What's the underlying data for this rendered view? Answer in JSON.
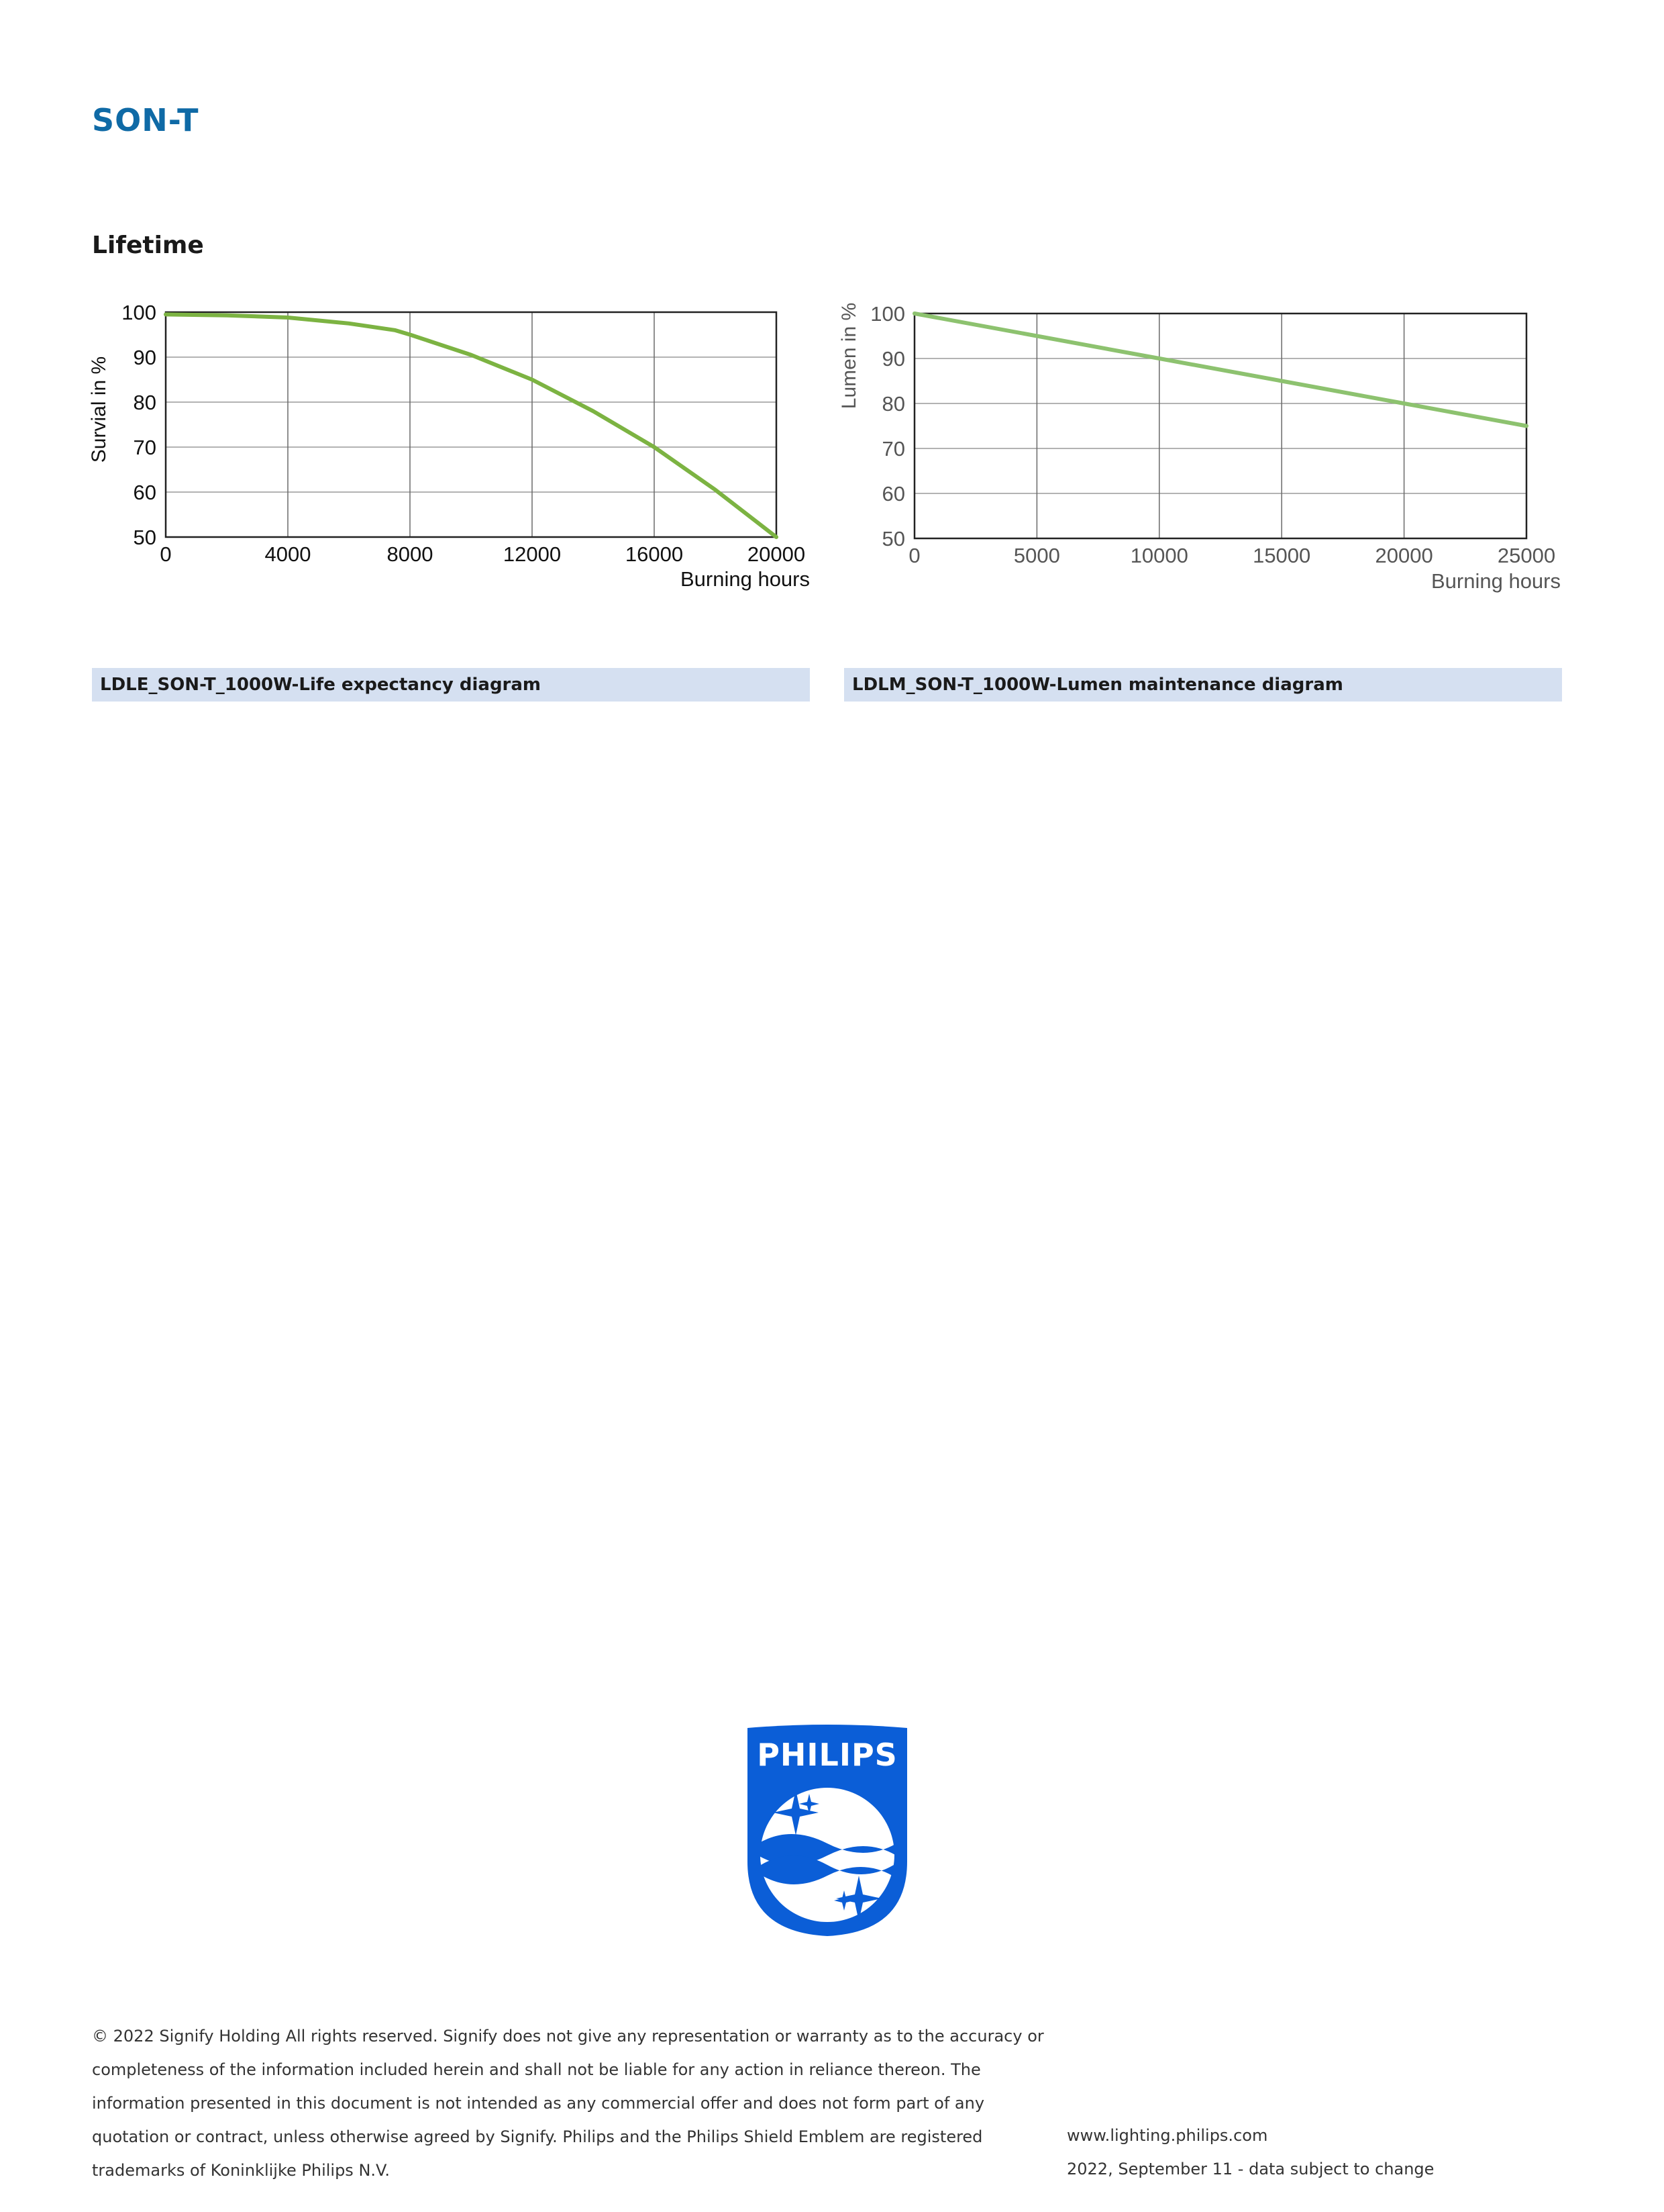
{
  "header": {
    "product_title": "SON-T"
  },
  "section": {
    "heading": "Lifetime"
  },
  "charts": {
    "life": {
      "caption": "LDLE_SON-T_1000W-Life expectancy diagram",
      "ylabel": "Survial in %",
      "xlabel": "Burning hours"
    },
    "lumen": {
      "caption": "LDLM_SON-T_1000W-Lumen maintenance diagram",
      "ylabel": "Lumen in %",
      "xlabel": "Burning hours"
    }
  },
  "chart_data": [
    {
      "type": "line",
      "xlabel": "Burning hours",
      "ylabel": "Survial in %",
      "xlim": [
        0,
        20000
      ],
      "ylim": [
        50,
        100
      ],
      "x_ticks": [
        0,
        4000,
        8000,
        12000,
        16000,
        20000
      ],
      "y_ticks": [
        50,
        60,
        70,
        80,
        90,
        100
      ],
      "grid": true,
      "series": [
        {
          "color": "#7cb342",
          "x": [
            0,
            2000,
            4000,
            6000,
            7500,
            8000,
            10000,
            12000,
            14000,
            16000,
            18000,
            20000
          ],
          "y": [
            99.5,
            99.3,
            98.8,
            97.5,
            96,
            95,
            90.5,
            85,
            78,
            70,
            60.5,
            50
          ]
        }
      ]
    },
    {
      "type": "line",
      "xlabel": "Burning hours",
      "ylabel": "Lumen in %",
      "xlim": [
        0,
        25000
      ],
      "ylim": [
        50,
        100
      ],
      "x_ticks": [
        0,
        5000,
        10000,
        15000,
        20000,
        25000
      ],
      "y_ticks": [
        50,
        60,
        70,
        80,
        90,
        100
      ],
      "grid": true,
      "series": [
        {
          "color": "#8dc26f",
          "x": [
            0,
            5000,
            10000,
            15000,
            20000,
            25000
          ],
          "y": [
            100,
            95,
            90,
            85,
            80,
            75
          ]
        }
      ]
    }
  ],
  "logo": {
    "wordmark": "PHILIPS",
    "color": "#0b5ed7"
  },
  "footer": {
    "legal_lines": [
      "© 2022 Signify Holding All rights reserved. Signify does not give any representation or warranty as to the accuracy or",
      "completeness of the information included herein and shall not be liable for any action in reliance thereon. The",
      "information presented in this document is not intended as any commercial offer and does not form part of any",
      "quotation or contract, unless otherwise agreed by Signify. Philips and the Philips Shield Emblem are registered",
      "trademarks of Koninklijke Philips N.V."
    ],
    "website": "www.lighting.philips.com",
    "date_note": "2022, September 11 - data subject to change"
  }
}
